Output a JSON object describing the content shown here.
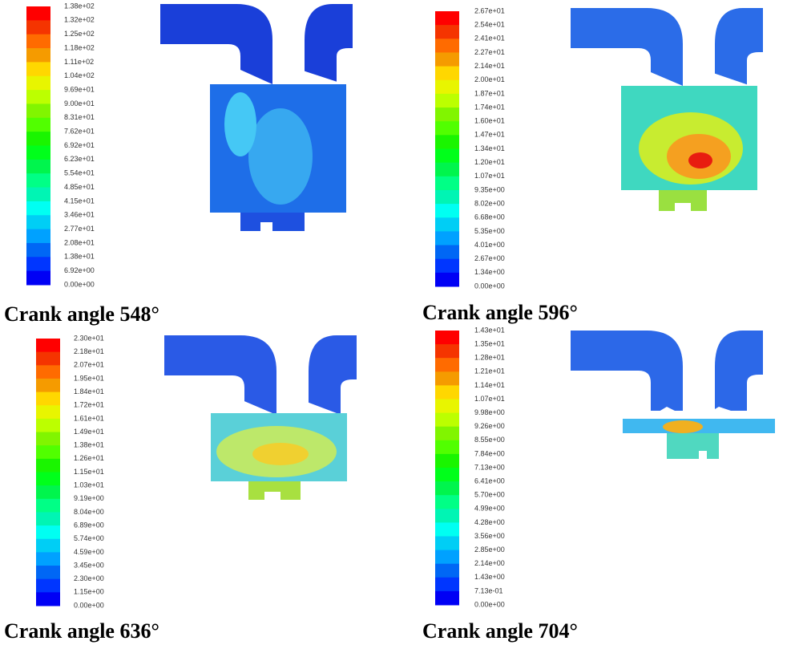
{
  "panels": [
    {
      "caption": "Crank angle 548°",
      "colorbar_labels": [
        "1.38e+02",
        "1.32e+02",
        "1.25e+02",
        "1.18e+02",
        "1.11e+02",
        "1.04e+02",
        "9.69e+01",
        "9.00e+01",
        "8.31e+01",
        "7.62e+01",
        "6.92e+01",
        "6.23e+01",
        "5.54e+01",
        "4.85e+01",
        "4.15e+01",
        "3.46e+01",
        "2.77e+01",
        "2.08e+01",
        "1.38e+01",
        "6.92e+00",
        "0.00e+00"
      ]
    },
    {
      "caption": "Crank angle 596°",
      "colorbar_labels": [
        "2.67e+01",
        "2.54e+01",
        "2.41e+01",
        "2.27e+01",
        "2.14e+01",
        "2.00e+01",
        "1.87e+01",
        "1.74e+01",
        "1.60e+01",
        "1.47e+01",
        "1.34e+01",
        "1.20e+01",
        "1.07e+01",
        "9.35e+00",
        "8.02e+00",
        "6.68e+00",
        "5.35e+00",
        "4.01e+00",
        "2.67e+00",
        "1.34e+00",
        "0.00e+00"
      ]
    },
    {
      "caption": "Crank angle 636°",
      "colorbar_labels": [
        "2.30e+01",
        "2.18e+01",
        "2.07e+01",
        "1.95e+01",
        "1.84e+01",
        "1.72e+01",
        "1.61e+01",
        "1.49e+01",
        "1.38e+01",
        "1.26e+01",
        "1.15e+01",
        "1.03e+01",
        "9.19e+00",
        "8.04e+00",
        "6.89e+00",
        "5.74e+00",
        "4.59e+00",
        "3.45e+00",
        "2.30e+00",
        "1.15e+00",
        "0.00e+00"
      ]
    },
    {
      "caption": "Crank angle 704°",
      "colorbar_labels": [
        "1.43e+01",
        "1.35e+01",
        "1.28e+01",
        "1.21e+01",
        "1.14e+01",
        "1.07e+01",
        "9.98e+00",
        "9.26e+00",
        "8.55e+00",
        "7.84e+00",
        "7.13e+00",
        "6.41e+00",
        "5.70e+00",
        "4.99e+00",
        "4.28e+00",
        "3.56e+00",
        "2.85e+00",
        "2.14e+00",
        "1.43e+00",
        "7.13e-01",
        "0.00e+00"
      ]
    }
  ]
}
